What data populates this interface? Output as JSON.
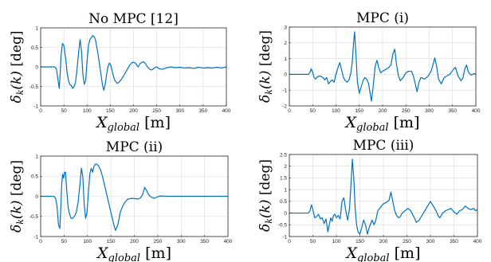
{
  "chart_data": [
    {
      "type": "line",
      "title": "No MPC [12]",
      "xlabel": "X_global [m]",
      "ylabel": "δ_k(k) [deg]",
      "xlim": [
        0,
        400
      ],
      "ylim": [
        -1,
        1
      ],
      "xticks": [
        0,
        50,
        100,
        150,
        200,
        250,
        300,
        350,
        400
      ],
      "yticks": [
        -1,
        -0.5,
        0,
        0.5,
        1
      ],
      "grid": true,
      "series": [
        {
          "x": [
            0,
            30,
            34,
            37,
            40,
            42,
            44,
            47,
            50,
            54,
            57,
            60,
            63,
            66,
            69,
            72,
            75,
            78,
            82,
            85,
            88,
            91,
            94,
            97,
            100,
            103,
            106,
            109,
            112,
            115,
            118,
            121,
            124,
            127,
            130,
            133,
            136,
            139,
            142,
            145,
            148,
            151,
            154,
            157,
            160,
            165,
            170,
            175,
            180,
            186,
            192,
            198,
            204,
            210,
            214,
            218,
            222,
            226,
            230,
            234,
            238,
            242,
            246,
            250,
            256,
            262,
            270,
            280,
            290,
            300,
            310,
            320,
            330,
            340,
            350,
            360,
            370,
            380,
            390,
            400
          ],
          "y": [
            0,
            0,
            -0.05,
            -0.3,
            -0.55,
            -0.2,
            0.3,
            0.6,
            0.55,
            0.2,
            -0.15,
            -0.35,
            -0.45,
            -0.48,
            -0.55,
            -0.5,
            -0.4,
            -0.1,
            0.4,
            0.7,
            0.4,
            -0.2,
            -0.45,
            -0.35,
            0.15,
            0.55,
            0.7,
            0.75,
            0.8,
            0.78,
            0.7,
            0.5,
            0.3,
            0.05,
            -0.2,
            -0.45,
            -0.6,
            -0.45,
            -0.2,
            0,
            0.1,
            0.05,
            -0.1,
            -0.25,
            -0.35,
            -0.42,
            -0.38,
            -0.3,
            -0.2,
            -0.08,
            0.05,
            0.12,
            0.1,
            0,
            0.08,
            0.12,
            0.13,
            0.08,
            0,
            -0.05,
            -0.08,
            -0.06,
            -0.02,
            0,
            -0.05,
            -0.06,
            -0.03,
            0,
            -0.02,
            -0.01,
            -0.03,
            -0.02,
            -0.04,
            -0.01,
            -0.03,
            -0.02,
            -0.03,
            -0.01,
            -0.03,
            0
          ]
        }
      ]
    },
    {
      "type": "line",
      "title": "MPC (i)",
      "xlabel": "X_global [m]",
      "ylabel": "δ_k(k) [deg]",
      "xlim": [
        0,
        400
      ],
      "ylim": [
        -2,
        3
      ],
      "xticks": [
        0,
        50,
        100,
        150,
        200,
        250,
        300,
        350,
        400
      ],
      "yticks": [
        -2,
        -1,
        0,
        1,
        2,
        3
      ],
      "grid": true,
      "series": [
        {
          "x": [
            0,
            40,
            44,
            47,
            50,
            53,
            56,
            60,
            66,
            72,
            76,
            80,
            84,
            88,
            92,
            96,
            100,
            104,
            108,
            112,
            116,
            120,
            124,
            128,
            132,
            135,
            138,
            140,
            143,
            146,
            150,
            154,
            158,
            162,
            166,
            170,
            176,
            180,
            184,
            188,
            192,
            196,
            200,
            206,
            212,
            218,
            222,
            226,
            230,
            234,
            238,
            244,
            250,
            256,
            262,
            266,
            270,
            274,
            278,
            282,
            290,
            298,
            304,
            308,
            312,
            316,
            320,
            326,
            332,
            338,
            344,
            350,
            356,
            362,
            368,
            372,
            376,
            380,
            384,
            390,
            396,
            400
          ],
          "y": [
            0,
            0,
            0.1,
            0.35,
            0.15,
            -0.2,
            -0.3,
            -0.15,
            -0.1,
            -0.2,
            -0.35,
            -0.2,
            -0.6,
            -0.45,
            -0.35,
            -0.5,
            0,
            0.4,
            0.75,
            0.3,
            -0.2,
            -0.4,
            -0.5,
            -0.35,
            0.1,
            0.8,
            2.1,
            2.7,
            1.2,
            -0.5,
            -1.2,
            -0.8,
            -0.4,
            -0.2,
            -0.3,
            -0.6,
            -1.7,
            -0.7,
            0.5,
            0.9,
            0.4,
            0.1,
            0.2,
            0.3,
            0.4,
            0.6,
            1.3,
            1.6,
            0.6,
            -0.1,
            -0.4,
            -0.2,
            0.1,
            0.2,
            0.2,
            -0.1,
            -0.6,
            -1.1,
            -0.5,
            -0.2,
            -0.3,
            -0.1,
            0.2,
            0.6,
            1.05,
            0.5,
            -0.3,
            -0.6,
            -0.2,
            -0.1,
            0,
            0.25,
            0.45,
            -0.1,
            -0.4,
            -0.25,
            0.3,
            0.6,
            0.15,
            -0.05,
            0.05,
            0
          ]
        }
      ]
    },
    {
      "type": "line",
      "title": "MPC (ii)",
      "xlabel": "X_global [m]",
      "ylabel": "δ_k(k) [deg]",
      "xlim": [
        0,
        400
      ],
      "ylim": [
        -1,
        1
      ],
      "xticks": [
        0,
        50,
        100,
        150,
        200,
        250,
        300,
        350,
        400
      ],
      "yticks": [
        -1,
        -0.5,
        0,
        0.5,
        1
      ],
      "grid": true,
      "series": [
        {
          "x": [
            0,
            28,
            32,
            35,
            38,
            41,
            43,
            45,
            47,
            49,
            51,
            53,
            56,
            59,
            62,
            65,
            68,
            72,
            76,
            80,
            84,
            87,
            90,
            93,
            96,
            99,
            102,
            105,
            108,
            111,
            114,
            117,
            120,
            124,
            128,
            132,
            136,
            140,
            144,
            148,
            152,
            156,
            160,
            165,
            170,
            175,
            180,
            185,
            190,
            196,
            202,
            208,
            214,
            218,
            222,
            226,
            230,
            236,
            242,
            248,
            256,
            266,
            280,
            300,
            320,
            340,
            360,
            380,
            400
          ],
          "y": [
            0,
            0,
            -0.05,
            -0.25,
            -0.7,
            -0.8,
            -0.3,
            0.3,
            0.55,
            0.45,
            0.6,
            0.6,
            0.1,
            -0.3,
            -0.45,
            -0.55,
            -0.55,
            -0.5,
            -0.4,
            -0.15,
            0.3,
            0.7,
            0.5,
            -0.2,
            -0.55,
            -0.4,
            0.1,
            0.55,
            0.7,
            0.6,
            0.75,
            0.8,
            0.8,
            0.75,
            0.65,
            0.5,
            0.3,
            0.1,
            -0.1,
            -0.3,
            -0.5,
            -0.7,
            -0.85,
            -0.7,
            -0.4,
            -0.25,
            -0.15,
            -0.08,
            -0.06,
            -0.05,
            -0.06,
            -0.07,
            -0.03,
            0.05,
            0.22,
            0.15,
            0.05,
            -0.02,
            -0.05,
            -0.02,
            0.01,
            0,
            0,
            0,
            0,
            0,
            0,
            0,
            0
          ]
        }
      ]
    },
    {
      "type": "line",
      "title": "MPC (iii)",
      "xlabel": "X_global [m]",
      "ylabel": "δ_k(k) [deg]",
      "xlim": [
        0,
        400
      ],
      "ylim": [
        -1,
        2.5
      ],
      "xticks": [
        0,
        50,
        100,
        150,
        200,
        250,
        300,
        350,
        400
      ],
      "yticks": [
        -1,
        -0.5,
        0,
        0.5,
        1,
        1.5,
        2,
        2.5
      ],
      "grid": true,
      "series": [
        {
          "x": [
            0,
            40,
            44,
            47,
            50,
            54,
            58,
            62,
            66,
            70,
            74,
            78,
            82,
            85,
            88,
            91,
            94,
            97,
            100,
            104,
            108,
            112,
            116,
            120,
            124,
            128,
            131,
            134,
            137,
            140,
            143,
            146,
            150,
            154,
            158,
            162,
            166,
            170,
            176,
            180,
            184,
            188,
            192,
            196,
            200,
            206,
            212,
            216,
            220,
            224,
            228,
            232,
            236,
            240,
            246,
            252,
            258,
            262,
            266,
            270,
            276,
            282,
            288,
            294,
            300,
            306,
            312,
            316,
            320,
            326,
            332,
            338,
            344,
            350,
            356,
            362,
            368,
            374,
            380,
            386,
            392,
            396,
            400
          ],
          "y": [
            0,
            0,
            0.1,
            0.35,
            0.15,
            -0.2,
            -0.15,
            -0.05,
            -0.25,
            -0.2,
            -0.45,
            -0.25,
            -0.8,
            -0.5,
            -0.2,
            -0.35,
            -0.1,
            -0.05,
            -0.2,
            -0.1,
            -0.25,
            0.5,
            0.65,
            0.1,
            -0.3,
            0.2,
            1.2,
            2.3,
            1.5,
            0.2,
            -0.5,
            -0.8,
            -0.9,
            -0.6,
            -0.3,
            -0.5,
            -0.9,
            -0.6,
            -0.3,
            -0.5,
            -0.3,
            0.1,
            0.2,
            0.3,
            0.4,
            0.45,
            0.55,
            0.9,
            0.5,
            0.1,
            -0.1,
            -0.2,
            -0.15,
            0,
            0.1,
            0.2,
            0.1,
            -0.05,
            -0.2,
            -0.4,
            -0.3,
            -0.1,
            0.1,
            0.3,
            0.5,
            0.3,
            0.1,
            -0.1,
            -0.2,
            0,
            0.1,
            0.15,
            0.2,
            0.05,
            -0.05,
            0.1,
            0.15,
            0.3,
            0.2,
            0.15,
            0.2,
            0.1,
            0.15
          ]
        }
      ]
    }
  ]
}
